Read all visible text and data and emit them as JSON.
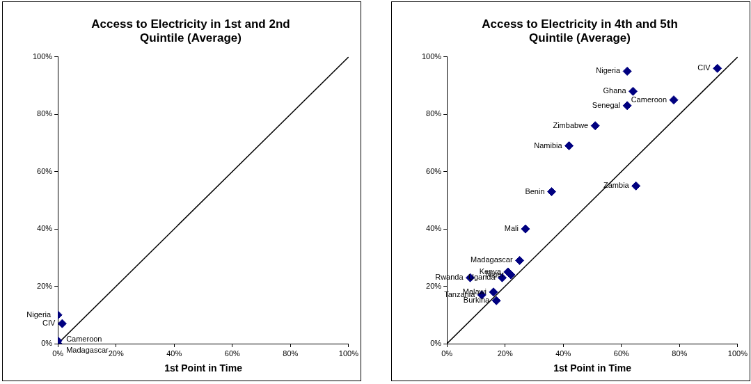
{
  "chart_data": [
    {
      "type": "scatter",
      "title": "Access to Electricity in 1st and 2nd Quintile (Average)",
      "xlabel": "1st Point in Time",
      "xlim": [
        0,
        100
      ],
      "ylim": [
        0,
        100
      ],
      "xticks": [
        {
          "value": 0,
          "label": "0%"
        },
        {
          "value": 20,
          "label": "20%"
        },
        {
          "value": 40,
          "label": "40%"
        },
        {
          "value": 60,
          "label": "60%"
        },
        {
          "value": 80,
          "label": "80%"
        },
        {
          "value": 100,
          "label": "100%"
        }
      ],
      "yticks": [
        {
          "value": 0,
          "label": "0%"
        },
        {
          "value": 20,
          "label": "20%"
        },
        {
          "value": 40,
          "label": "40%"
        },
        {
          "value": 60,
          "label": "60%"
        },
        {
          "value": 80,
          "label": "80%"
        },
        {
          "value": 100,
          "label": "100%"
        }
      ],
      "grid": false,
      "legend": false,
      "marker": "diamond",
      "series": [
        {
          "color": "#000080",
          "x": [
            0,
            1.5,
            0,
            0
          ],
          "values": [
            10,
            7,
            1,
            0
          ],
          "value_labels": [
            "Nigeria",
            "CIV",
            "Cameroon",
            "Madagascar"
          ]
        },
        {
          "type": "line",
          "marker": "none",
          "color": "#000000",
          "x": [
            0,
            100
          ],
          "values": [
            0,
            100
          ]
        }
      ]
    },
    {
      "type": "scatter",
      "title": "Access to Electricity in 4th and 5th Quintile (Average)",
      "xlabel": "1st Point in Time",
      "xlim": [
        0,
        100
      ],
      "ylim": [
        0,
        100
      ],
      "xticks": [
        {
          "value": 0,
          "label": "0%"
        },
        {
          "value": 20,
          "label": "20%"
        },
        {
          "value": 40,
          "label": "40%"
        },
        {
          "value": 60,
          "label": "60%"
        },
        {
          "value": 80,
          "label": "80%"
        },
        {
          "value": 100,
          "label": "100%"
        }
      ],
      "yticks": [
        {
          "value": 0,
          "label": "0%"
        },
        {
          "value": 20,
          "label": "20%"
        },
        {
          "value": 40,
          "label": "40%"
        },
        {
          "value": 60,
          "label": "60%"
        },
        {
          "value": 80,
          "label": "80%"
        },
        {
          "value": 100,
          "label": "100%"
        }
      ],
      "grid": false,
      "legend": false,
      "marker": "diamond",
      "series": [
        {
          "color": "#000080",
          "x": [
            62,
            93,
            64,
            78,
            62,
            51,
            42,
            36,
            65,
            27,
            25,
            21,
            22,
            19,
            8,
            12,
            16,
            17
          ],
          "values": [
            95,
            96,
            88,
            85,
            83,
            76,
            69,
            53,
            55,
            40,
            29,
            25,
            24,
            23,
            23,
            17,
            18,
            15
          ],
          "value_labels": [
            "Nigeria",
            "CIV",
            "Ghana",
            "Cameroon",
            "Senegal",
            "Zimbabwe",
            "Namibia",
            "Benin",
            "Zambia",
            "Mali",
            "Madagascar",
            "Kenya",
            "Niger",
            "Uganda",
            "Rwanda",
            "Tanzania",
            "Malawi",
            "Burkina"
          ]
        },
        {
          "type": "line",
          "marker": "none",
          "color": "#000000",
          "x": [
            0,
            100
          ],
          "values": [
            0,
            100
          ]
        }
      ]
    }
  ]
}
